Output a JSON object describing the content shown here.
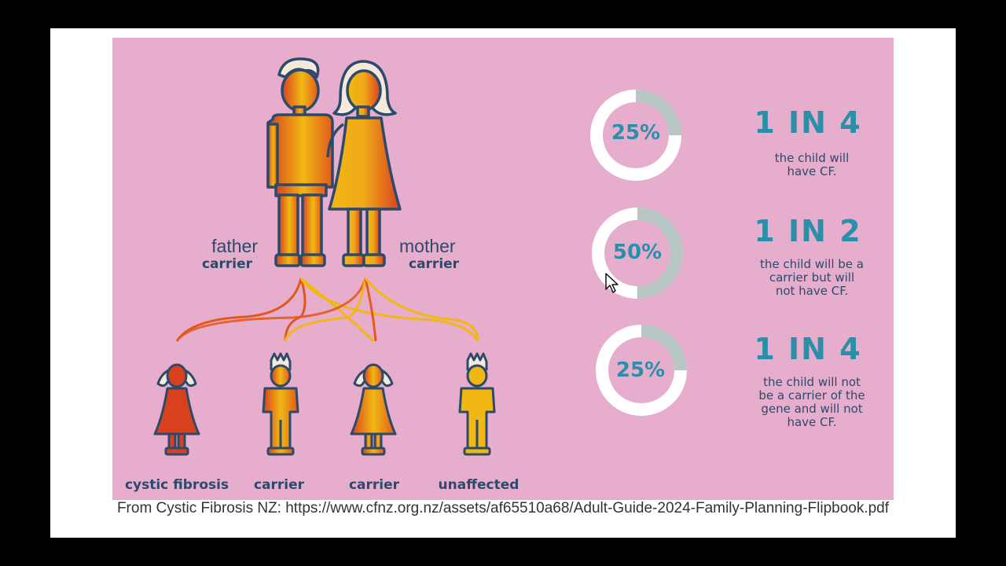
{
  "colors": {
    "background": "#e6adcd",
    "navy": "#2d4a6b",
    "teal": "#2a8fa8",
    "red": "#d9411e",
    "yellow": "#f1b813",
    "ring_gray": "#b9c7c4"
  },
  "parents": {
    "father": {
      "name": "father",
      "status": "carrier"
    },
    "mother": {
      "name": "mother",
      "status": "carrier"
    }
  },
  "children": [
    {
      "label": "cystic fibrosis",
      "fill": "red"
    },
    {
      "label": "carrier",
      "fill": "gradient"
    },
    {
      "label": "carrier",
      "fill": "gradient"
    },
    {
      "label": "unaffected",
      "fill": "yellow"
    }
  ],
  "outcomes": [
    {
      "percent_label": "25%",
      "percent": 25,
      "ratio": "1 IN 4",
      "lines": [
        "the child will",
        "have CF."
      ]
    },
    {
      "percent_label": "50%",
      "percent": 50,
      "ratio": "1 IN 2",
      "lines": [
        "the child will be a",
        "carrier but will",
        "not have CF."
      ]
    },
    {
      "percent_label": "25%",
      "percent": 25,
      "ratio": "1 IN 4",
      "lines": [
        "the child will not",
        "be a carrier of the",
        "gene and will not",
        "have CF."
      ]
    }
  ],
  "caption": "From Cystic Fibrosis NZ: https://www.cfnz.org.nz/assets/af65510a68/Adult-Guide-2024-Family-Planning-Flipbook.pdf"
}
